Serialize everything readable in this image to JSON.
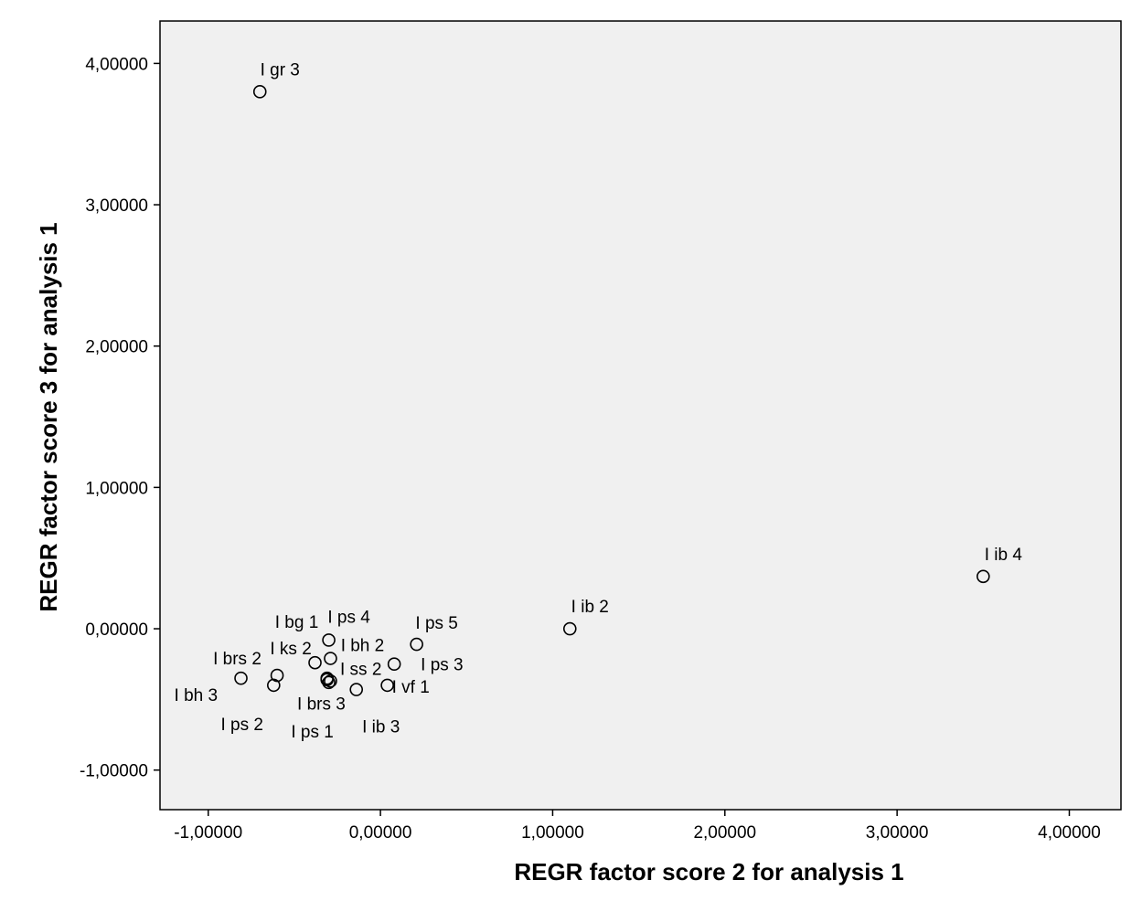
{
  "chart_data": {
    "type": "scatter",
    "xlabel": "REGR factor score   2 for analysis 1",
    "ylabel": "REGR factor score   3 for analysis 1",
    "xlim": [
      -1.28,
      4.3
    ],
    "ylim": [
      -1.28,
      4.3
    ],
    "xticks": [
      -1,
      0,
      1,
      2,
      3,
      4
    ],
    "yticks": [
      -1,
      0,
      1,
      2,
      3,
      4
    ],
    "xtick_labels": [
      "-1,00000",
      "0,00000",
      "1,00000",
      "2,00000",
      "3,00000",
      "4,00000"
    ],
    "ytick_labels": [
      "-1,00000",
      "0,00000",
      "1,00000",
      "2,00000",
      "3,00000",
      "4,00000"
    ],
    "grid": false,
    "colors": {
      "plot_bg": "#f0f0f0",
      "marker": "#000000",
      "axis": "#000000"
    },
    "points": [
      {
        "label": "I gr 3",
        "x": -0.7,
        "y": 3.8
      },
      {
        "label": "I ib 4",
        "x": 3.5,
        "y": 0.37
      },
      {
        "label": "I ib 2",
        "x": 1.1,
        "y": 0.0
      },
      {
        "label": "I ps 5",
        "x": 0.21,
        "y": -0.11
      },
      {
        "label": "I ps 4",
        "x": -0.3,
        "y": -0.08
      },
      {
        "label": "I bg 1",
        "x": -0.38,
        "y": -0.24
      },
      {
        "label": "I bh 2",
        "x": -0.29,
        "y": -0.21
      },
      {
        "label": "I ks 2",
        "x": -0.6,
        "y": -0.33
      },
      {
        "label": "I brs 2",
        "x": -0.81,
        "y": -0.35
      },
      {
        "label": "I bh 3",
        "x": -0.62,
        "y": -0.4
      },
      {
        "label": "I ss 2",
        "x": -0.31,
        "y": -0.36
      },
      {
        "label": "I brs 3",
        "x": -0.29,
        "y": -0.37
      },
      {
        "label": "I ps 1",
        "x": -0.3,
        "y": -0.38
      },
      {
        "label": "I ps 2",
        "x": -0.31,
        "y": -0.35
      },
      {
        "label": "I ps 3",
        "x": 0.08,
        "y": -0.25
      },
      {
        "label": "I vf 1",
        "x": 0.04,
        "y": -0.4
      },
      {
        "label": "I ib 3",
        "x": -0.14,
        "y": -0.43
      }
    ]
  }
}
